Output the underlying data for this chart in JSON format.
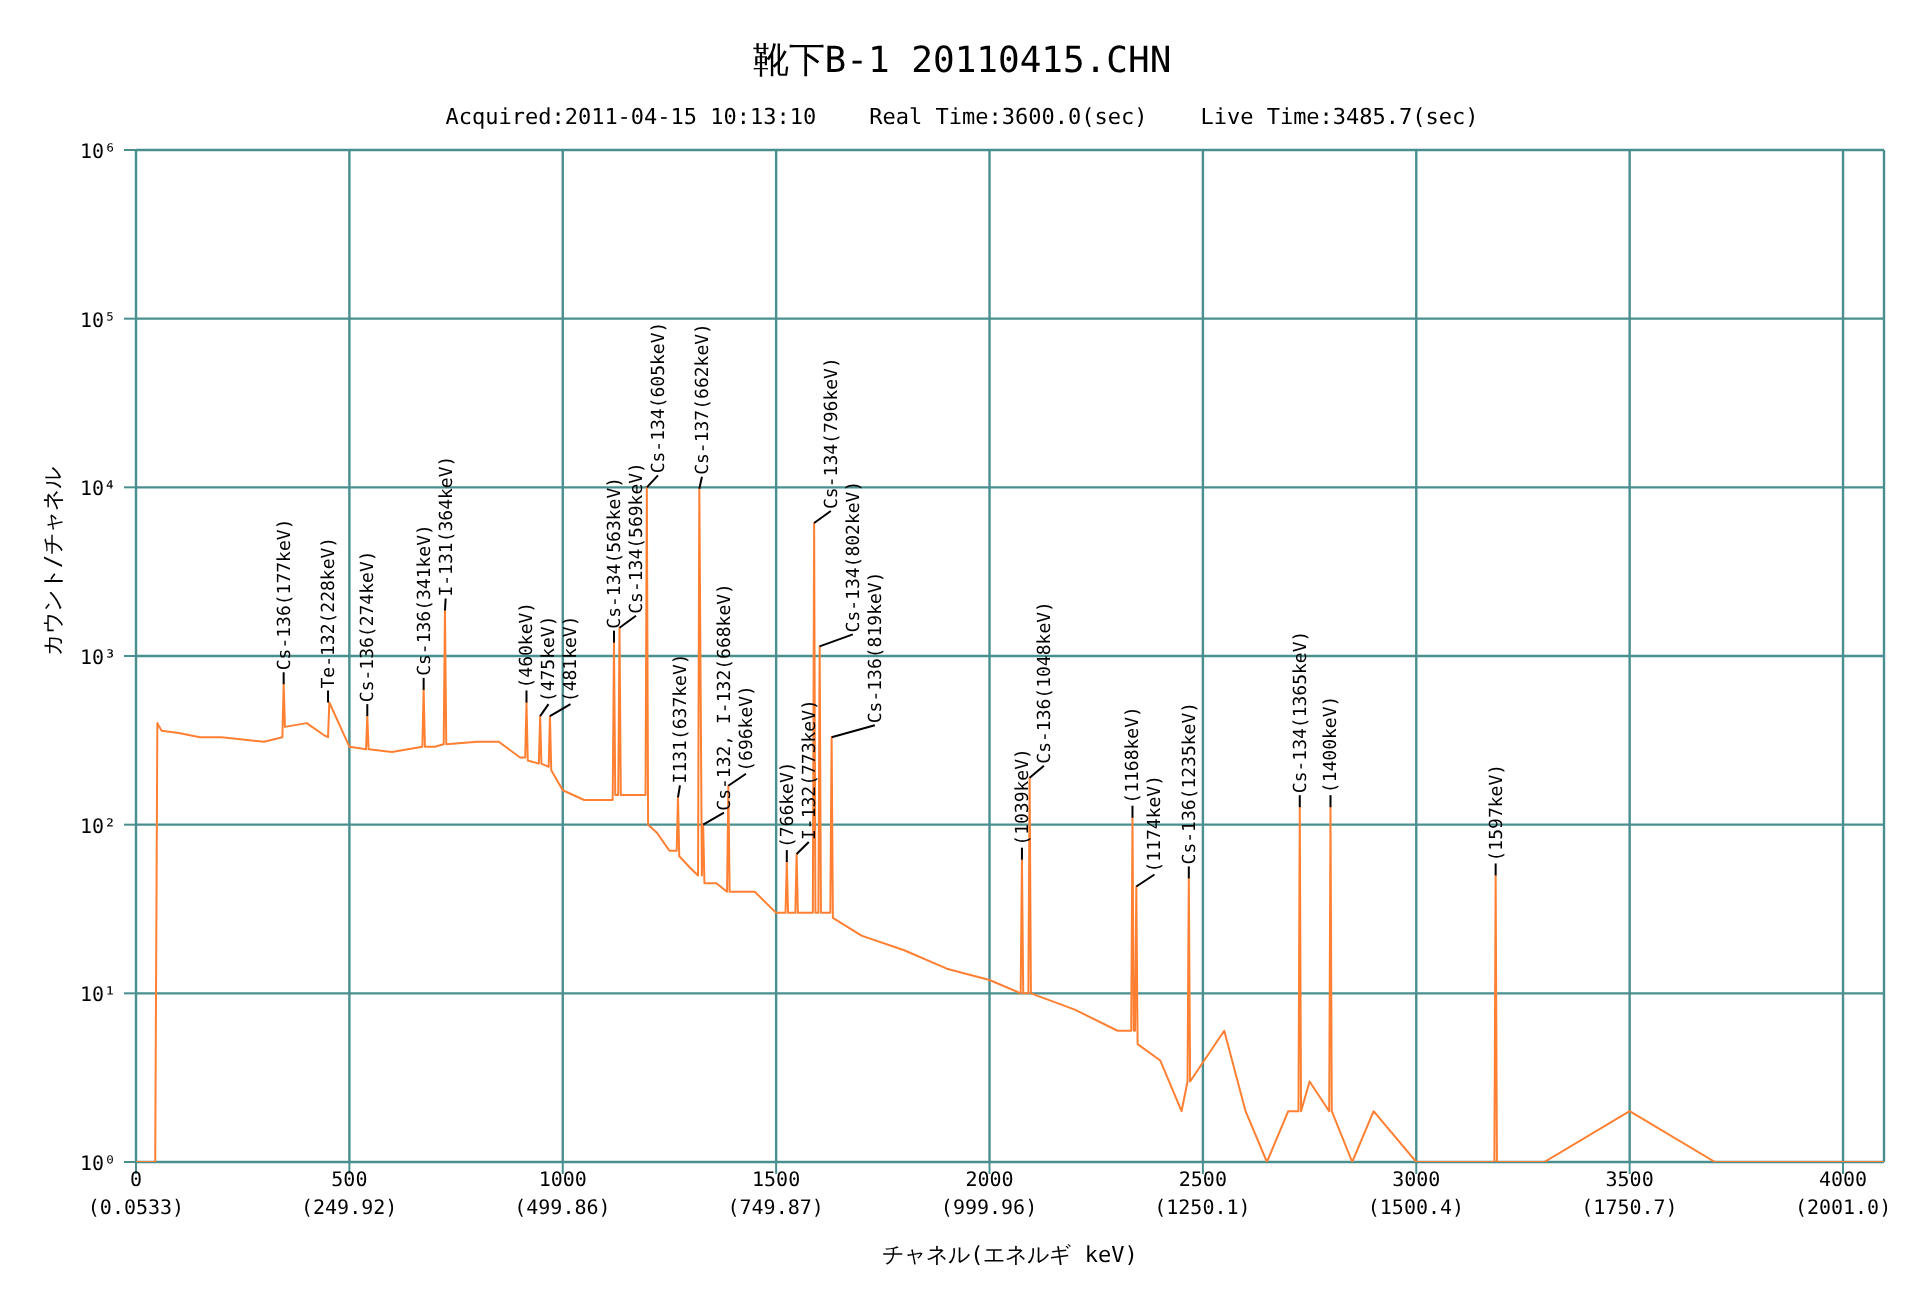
{
  "chart_data": {
    "type": "line",
    "title": "靴下B-1  20110415.CHN",
    "subtitle": "Acquired:2011-04-15 10:13:10    Real Time:3600.0(sec)    Live Time:3485.7(sec)",
    "xlabel": "チャネル(エネルギ keV)",
    "ylabel": "カウント/チャネル",
    "log": "y",
    "grid": true,
    "marker": "none",
    "line_style": "solid",
    "xlim": [
      0,
      4096
    ],
    "ylim": [
      1,
      1000000
    ],
    "xticks": [
      0,
      500,
      1000,
      1500,
      2000,
      2500,
      3000,
      3500,
      4000
    ],
    "x2lim": [
      0.0533,
      2049.0
    ],
    "x2ticks": [
      {
        "value": 0.0533,
        "label": "(0.0533)"
      },
      {
        "value": 249.92,
        "label": "(249.92)"
      },
      {
        "value": 499.86,
        "label": "(499.86)"
      },
      {
        "value": 749.87,
        "label": "(749.87)"
      },
      {
        "value": 999.96,
        "label": "(999.96)"
      },
      {
        "value": 1250.1,
        "label": "(1250.1)"
      },
      {
        "value": 1500.4,
        "label": "(1500.4)"
      },
      {
        "value": 1750.7,
        "label": "(1750.7)"
      },
      {
        "value": 2001.0,
        "label": "(2001.0)"
      }
    ],
    "yticks": [
      {
        "value": 1,
        "label": "10⁰"
      },
      {
        "value": 10,
        "label": "10¹"
      },
      {
        "value": 100,
        "label": "10²"
      },
      {
        "value": 1000,
        "label": "10³"
      },
      {
        "value": 10000,
        "label": "10⁴"
      },
      {
        "value": 100000,
        "label": "10⁵"
      },
      {
        "value": 1000000,
        "label": "10⁶"
      }
    ],
    "series": [
      {
        "color": "#ff8033",
        "x": [
          0,
          45,
          50,
          60,
          100,
          150,
          200,
          250,
          300,
          343,
          346,
          349,
          400,
          440,
          450,
          453,
          500,
          539,
          542,
          545,
          600,
          671,
          674,
          677,
          700,
          721,
          724,
          727,
          800,
          850,
          900,
          912,
          915,
          918,
          944,
          947,
          950,
          967,
          970,
          973,
          1000,
          1050,
          1100,
          1117,
          1120,
          1123,
          1130,
          1133,
          1136,
          1180,
          1194,
          1197,
          1200,
          1220,
          1250,
          1267,
          1270,
          1273,
          1300,
          1317,
          1320,
          1326,
          1329,
          1332,
          1360,
          1385,
          1388,
          1391,
          1450,
          1500,
          1522,
          1525,
          1528,
          1545,
          1548,
          1551,
          1586,
          1589,
          1592,
          1599,
          1602,
          1605,
          1627,
          1630,
          1633,
          1700,
          1800,
          1900,
          2000,
          2073,
          2076,
          2079,
          2091,
          2094,
          2097,
          2200,
          2300,
          2332,
          2335,
          2338,
          2341,
          2344,
          2347,
          2400,
          2450,
          2464,
          2467,
          2470,
          2550,
          2600,
          2650,
          2700,
          2724,
          2727,
          2730,
          2750,
          2796,
          2799,
          2802,
          2850,
          2900,
          3000,
          3100,
          3183,
          3186,
          3189,
          3300,
          3500,
          3700,
          3900,
          4096
        ],
        "values": [
          1,
          1,
          400,
          360,
          350,
          330,
          330,
          320,
          310,
          330,
          680,
          380,
          400,
          340,
          330,
          530,
          290,
          280,
          440,
          280,
          270,
          290,
          630,
          290,
          290,
          300,
          1860,
          300,
          310,
          310,
          250,
          250,
          530,
          240,
          230,
          440,
          230,
          220,
          440,
          210,
          160,
          140,
          140,
          140,
          1200,
          150,
          150,
          1470,
          150,
          150,
          150,
          10000,
          100,
          90,
          70,
          70,
          145,
          65,
          55,
          50,
          9800,
          50,
          100,
          45,
          45,
          40,
          170,
          40,
          40,
          30,
          30,
          60,
          30,
          30,
          67,
          30,
          30,
          6150,
          30,
          30,
          1140,
          30,
          30,
          330,
          28,
          22,
          18,
          14,
          12,
          10,
          62,
          10,
          10,
          190,
          10,
          8,
          6,
          6,
          110,
          6,
          6,
          43,
          5,
          4,
          2,
          3,
          48,
          3,
          6,
          2,
          1,
          2,
          2,
          127,
          2,
          3,
          2,
          127,
          2,
          1,
          2,
          1,
          1,
          1,
          50,
          1,
          1,
          2,
          1,
          1,
          1
        ]
      }
    ],
    "annotations": [
      {
        "text": "Cs-136(177keV)",
        "x": 346,
        "y": 680
      },
      {
        "text": "Te-132(228keV)",
        "x": 450,
        "y": 530
      },
      {
        "text": "Cs-136(274keV)",
        "x": 542,
        "y": 440
      },
      {
        "text": "Cs-136(341keV)",
        "x": 674,
        "y": 630
      },
      {
        "text": "I-131(364keV)",
        "x": 724,
        "y": 1860
      },
      {
        "text": "(460keV)",
        "x": 915,
        "y": 530
      },
      {
        "text": "(475keV)",
        "x": 947,
        "y": 440
      },
      {
        "text": "(481keV)",
        "x": 970,
        "y": 440
      },
      {
        "text": "Cs-134(563keV)",
        "x": 1120,
        "y": 1200
      },
      {
        "text": "Cs-134(569keV)",
        "x": 1133,
        "y": 1470
      },
      {
        "text": "Cs-134(605keV)",
        "x": 1197,
        "y": 10000
      },
      {
        "text": "I131(637keV)",
        "x": 1270,
        "y": 145
      },
      {
        "text": "Cs-137(662keV)",
        "x": 1320,
        "y": 9800
      },
      {
        "text": "Cs-132, I-132(668keV)",
        "x": 1329,
        "y": 100
      },
      {
        "text": "(696keV)",
        "x": 1388,
        "y": 170
      },
      {
        "text": "(766keV)",
        "x": 1525,
        "y": 60
      },
      {
        "text": "I-132(773keV)",
        "x": 1548,
        "y": 67
      },
      {
        "text": "Cs-134(796keV)",
        "x": 1589,
        "y": 6150
      },
      {
        "text": "Cs-134(802keV)",
        "x": 1602,
        "y": 1140
      },
      {
        "text": "Cs-136(819keV)",
        "x": 1630,
        "y": 330
      },
      {
        "text": "(1039keV)",
        "x": 2076,
        "y": 62
      },
      {
        "text": "Cs-136(1048keV)",
        "x": 2094,
        "y": 190
      },
      {
        "text": "(1168keV)",
        "x": 2335,
        "y": 110
      },
      {
        "text": "(1174keV)",
        "x": 2344,
        "y": 43
      },
      {
        "text": "Cs-136(1235keV)",
        "x": 2467,
        "y": 48
      },
      {
        "text": "Cs-134(1365keV)",
        "x": 2727,
        "y": 127
      },
      {
        "text": "(1400keV)",
        "x": 2799,
        "y": 127
      },
      {
        "text": "(1597keV)",
        "x": 3186,
        "y": 50
      }
    ]
  }
}
